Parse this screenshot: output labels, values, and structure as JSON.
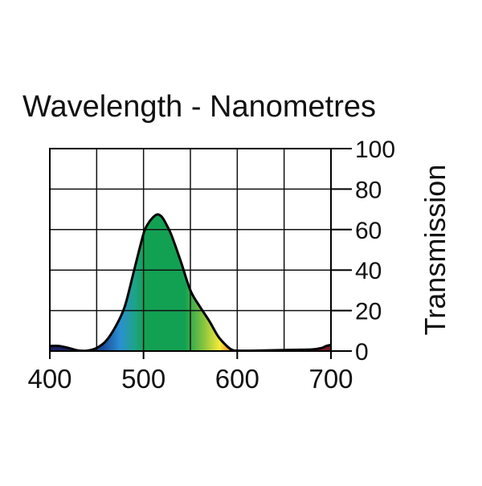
{
  "chart_data": {
    "type": "area",
    "title": "Wavelength - Nanometres",
    "xlabel": "Wavelength - Nanometres",
    "ylabel": "Transmission",
    "xlim": [
      400,
      700
    ],
    "ylim": [
      0,
      100
    ],
    "x_ticks": [
      400,
      500,
      600,
      700
    ],
    "y_ticks": [
      0,
      20,
      40,
      60,
      80,
      100
    ],
    "grid": true,
    "series": [
      {
        "name": "Transmission",
        "x": [
          400,
          410,
          420,
          430,
          440,
          450,
          460,
          470,
          480,
          490,
          500,
          505,
          510,
          515,
          520,
          525,
          530,
          540,
          550,
          560,
          570,
          580,
          590,
          595,
          600,
          620,
          640,
          660,
          680,
          690,
          695,
          700
        ],
        "values": [
          2.5,
          2.5,
          1.5,
          0.3,
          0.2,
          1.5,
          5,
          12,
          22,
          40,
          58,
          63,
          66,
          67.5,
          66,
          62,
          57,
          44,
          30,
          22,
          15,
          7,
          2,
          0.5,
          0.2,
          0.2,
          0.4,
          0.6,
          0.8,
          1.5,
          2.5,
          3
        ]
      }
    ],
    "colors": {
      "violet": "#1a1f63",
      "blue": "#2a8fd3",
      "cyan_green": "#1fa38a",
      "green": "#12a152",
      "yellow_green": "#8cc63e",
      "yellow": "#f7ea3a",
      "orange": "#f39a2a",
      "red": "#d12a1e",
      "deep_red": "#7a1a28",
      "outline": "#000000",
      "grid": "#111111"
    }
  }
}
